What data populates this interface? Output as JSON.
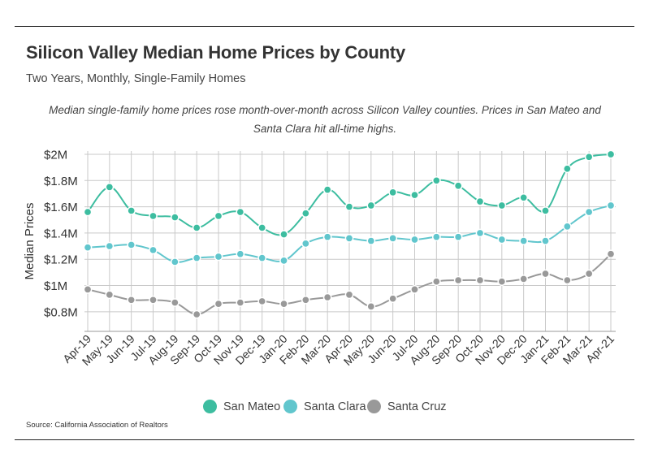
{
  "title": "Silicon Valley Median Home Prices by County",
  "subtitle": "Two Years, Monthly, Single-Family Homes",
  "description": "Median single-family home prices rose month-over-month across Silicon Valley counties. Prices in San Mateo and Santa Clara hit all-time highs.",
  "source": "Source:  California Association of Realtors",
  "chart_data": {
    "type": "line",
    "title": "Silicon Valley Median Home Prices by County",
    "subtitle": "Two Years, Monthly, Single-Family Homes",
    "xlabel": "",
    "ylabel": "Median Prices",
    "ylim": [
      0.7,
      2.0
    ],
    "yticks": [
      0.8,
      1.0,
      1.2,
      1.4,
      1.6,
      1.8,
      2.0
    ],
    "ytick_labels": [
      "$0.8M",
      "$1M",
      "$1.2M",
      "$1.4M",
      "$1.6M",
      "$1.8M",
      "$2M"
    ],
    "grid": true,
    "legend_position": "bottom",
    "categories": [
      "Apr-19",
      "May-19",
      "Jun-19",
      "Jul-19",
      "Aug-19",
      "Sep-19",
      "Oct-19",
      "Nov-19",
      "Dec-19",
      "Jan-20",
      "Feb-20",
      "Mar-20",
      "Apr-20",
      "May-20",
      "Jun-20",
      "Jul-20",
      "Aug-20",
      "Sep-20",
      "Oct-20",
      "Nov-20",
      "Dec-20",
      "Jan-21",
      "Feb-21",
      "Mar-21",
      "Apr-21"
    ],
    "series": [
      {
        "name": "San Mateo",
        "color": "#3dbda0",
        "values": [
          1.56,
          1.75,
          1.57,
          1.53,
          1.52,
          1.44,
          1.53,
          1.56,
          1.44,
          1.39,
          1.55,
          1.73,
          1.6,
          1.61,
          1.71,
          1.69,
          1.8,
          1.76,
          1.64,
          1.61,
          1.67,
          1.57,
          1.89,
          1.98,
          2.0
        ]
      },
      {
        "name": "Santa Clara",
        "color": "#61c6cd",
        "values": [
          1.29,
          1.3,
          1.31,
          1.27,
          1.18,
          1.21,
          1.22,
          1.24,
          1.21,
          1.19,
          1.32,
          1.37,
          1.36,
          1.34,
          1.36,
          1.35,
          1.37,
          1.37,
          1.4,
          1.35,
          1.34,
          1.34,
          1.45,
          1.56,
          1.61
        ]
      },
      {
        "name": "Santa Cruz",
        "color": "#999999",
        "values": [
          0.97,
          0.93,
          0.89,
          0.89,
          0.87,
          0.78,
          0.86,
          0.87,
          0.88,
          0.86,
          0.89,
          0.91,
          0.93,
          0.84,
          0.9,
          0.97,
          1.03,
          1.04,
          1.04,
          1.03,
          1.05,
          1.09,
          1.04,
          1.09,
          1.24
        ]
      }
    ]
  }
}
